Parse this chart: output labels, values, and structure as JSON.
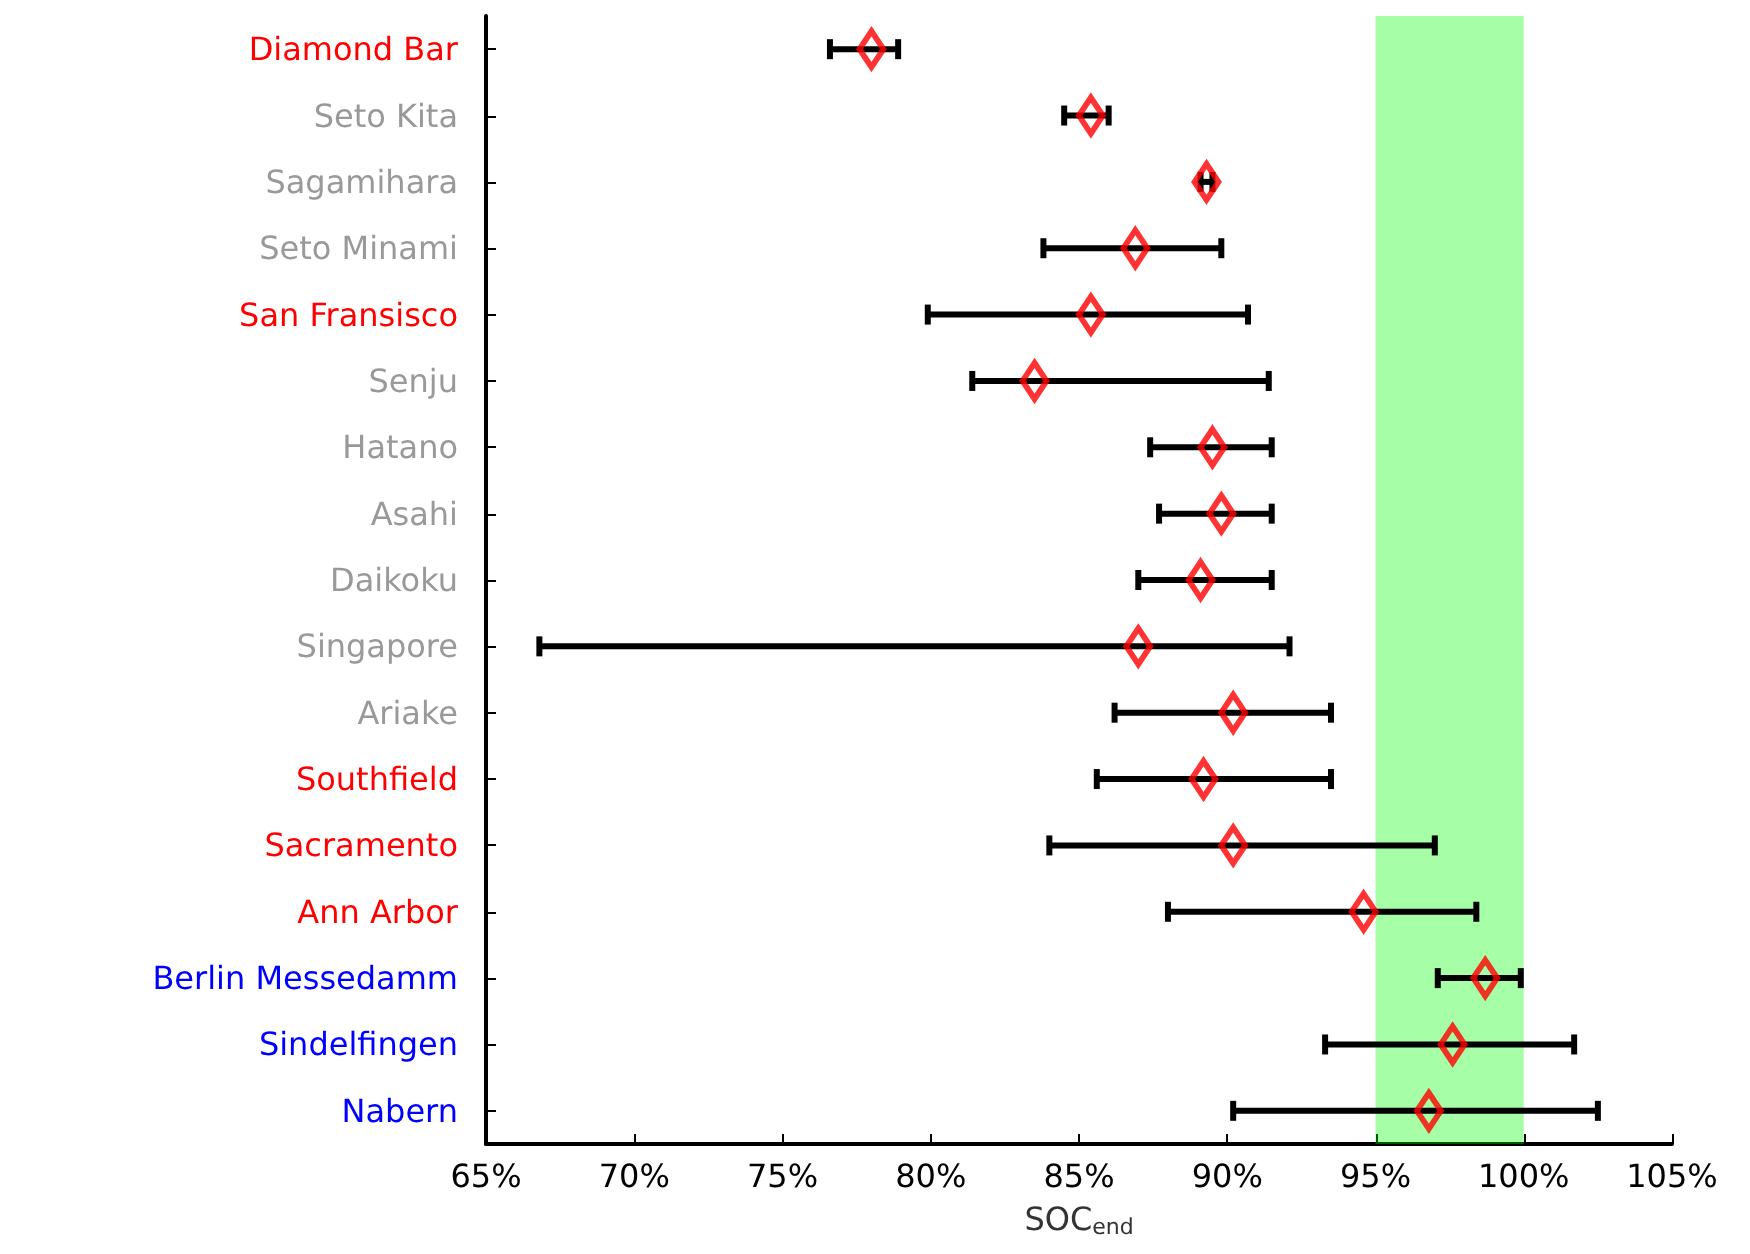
{
  "chart_data": {
    "type": "scatter",
    "orientation": "horizontal",
    "xlabel": "SOC$_{end}$",
    "categories": [
      "Diamond Bar",
      "Seto Kita",
      "Sagamihara",
      "Seto Minami",
      "San Fransisco",
      "Senju",
      "Hatano",
      "Asahi",
      "Daikoku",
      "Singapore",
      "Ariake",
      "Southfield",
      "Sacramento",
      "Ann Arbor",
      "Berlin Messedamm",
      "Sindelfingen",
      "Nabern"
    ],
    "series": [
      {
        "color": "#ff0000",
        "values": [
          78.0,
          85.4,
          89.3,
          86.9,
          85.4,
          83.5,
          89.5,
          89.8,
          89.1,
          87.0,
          90.2,
          89.2,
          90.2,
          94.6,
          98.7,
          97.6,
          96.8
        ],
        "errors": [
          [
            76.6,
            78.9
          ],
          [
            84.5,
            86.0
          ],
          [
            89.1,
            89.5
          ],
          [
            83.8,
            89.8
          ],
          [
            79.9,
            90.7
          ],
          [
            81.4,
            91.4
          ],
          [
            87.4,
            91.5
          ],
          [
            87.7,
            91.5
          ],
          [
            87.0,
            91.5
          ],
          [
            66.8,
            92.1
          ],
          [
            86.2,
            93.5
          ],
          [
            85.6,
            93.5
          ],
          [
            84.0,
            97.0
          ],
          [
            88.0,
            98.4
          ],
          [
            97.1,
            99.9
          ],
          [
            93.3,
            101.7
          ],
          [
            90.2,
            102.5
          ]
        ]
      }
    ],
    "xlim": [
      65,
      105
    ],
    "xticks": [
      {
        "value": 65,
        "label": "65%"
      },
      {
        "value": 70,
        "label": "70%"
      },
      {
        "value": 75,
        "label": "75%"
      },
      {
        "value": 80,
        "label": "80%"
      },
      {
        "value": 85,
        "label": "85%"
      },
      {
        "value": 90,
        "label": "90%"
      },
      {
        "value": 95,
        "label": "95%"
      },
      {
        "value": 100,
        "label": "100%"
      },
      {
        "value": 105,
        "label": "105%"
      }
    ],
    "bands": [
      {
        "axis": "x",
        "from": 95,
        "to": 100,
        "color": "#00ff00"
      }
    ],
    "marker": "diamond",
    "grid": false
  }
}
